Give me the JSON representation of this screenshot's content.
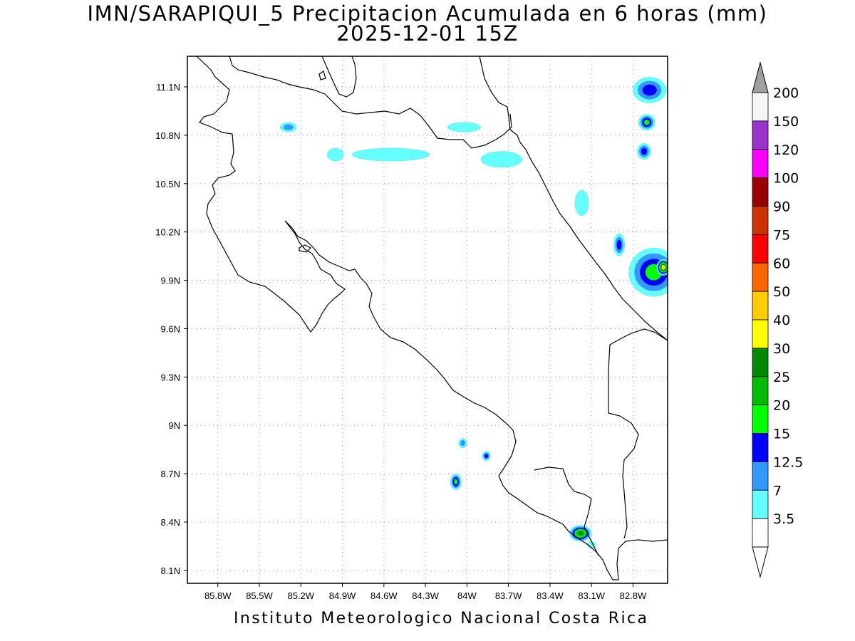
{
  "title": {
    "line1": "IMN/SARAPIQUI_5 Precipitacion Acumulada en 6 horas (mm)",
    "line2": "2025-12-01 15Z"
  },
  "footer": "Instituto Meteorologico Nacional Costa Rica",
  "map": {
    "lon_range": [
      -86.02,
      -82.55
    ],
    "lat_range": [
      8.02,
      11.29
    ],
    "lon_ticks": [
      {
        "value": -85.8,
        "label": "85.8W"
      },
      {
        "value": -85.5,
        "label": "85.5W"
      },
      {
        "value": -85.2,
        "label": "85.2W"
      },
      {
        "value": -84.9,
        "label": "84.9W"
      },
      {
        "value": -84.6,
        "label": "84.6W"
      },
      {
        "value": -84.3,
        "label": "84.3W"
      },
      {
        "value": -84.0,
        "label": "84W"
      },
      {
        "value": -83.7,
        "label": "83.7W"
      },
      {
        "value": -83.4,
        "label": "83.4W"
      },
      {
        "value": -83.1,
        "label": "83.1W"
      },
      {
        "value": -82.8,
        "label": "82.8W"
      }
    ],
    "lat_ticks": [
      {
        "value": 11.1,
        "label": "11.1N"
      },
      {
        "value": 10.8,
        "label": "10.8N"
      },
      {
        "value": 10.5,
        "label": "10.5N"
      },
      {
        "value": 10.2,
        "label": "10.2N"
      },
      {
        "value": 9.9,
        "label": "9.9N"
      },
      {
        "value": 9.6,
        "label": "9.6N"
      },
      {
        "value": 9.3,
        "label": "9.3N"
      },
      {
        "value": 9.0,
        "label": "9N"
      },
      {
        "value": 8.7,
        "label": "8.7N"
      },
      {
        "value": 8.4,
        "label": "8.4N"
      },
      {
        "value": 8.1,
        "label": "8.1N"
      }
    ],
    "grid": "dotted"
  },
  "colorbar": {
    "levels": [
      {
        "label": "200",
        "color": "#f5f5f5"
      },
      {
        "label": "150",
        "color": "#9933cc"
      },
      {
        "label": "120",
        "color": "#ff00ff"
      },
      {
        "label": "100",
        "color": "#990000"
      },
      {
        "label": "90",
        "color": "#cc3300"
      },
      {
        "label": "75",
        "color": "#ff0000"
      },
      {
        "label": "60",
        "color": "#ff6600"
      },
      {
        "label": "50",
        "color": "#ffcc00"
      },
      {
        "label": "40",
        "color": "#ffff00"
      },
      {
        "label": "30",
        "color": "#008800"
      },
      {
        "label": "25",
        "color": "#00bb00"
      },
      {
        "label": "20",
        "color": "#00ff00"
      },
      {
        "label": "15",
        "color": "#0000ff"
      },
      {
        "label": "12.5",
        "color": "#3399ff"
      },
      {
        "label": "7",
        "color": "#66ffff"
      },
      {
        "label": "3.5",
        "color": "#ffffff"
      }
    ],
    "top_arrow_color": "#a0a0a0",
    "bottom_arrow_color": "#ffffff"
  },
  "precipitation_cells": [
    {
      "lon": -85.29,
      "lat": 10.85,
      "rx": 0.06,
      "ry": 0.03,
      "level": "12.5"
    },
    {
      "lon": -84.95,
      "lat": 10.68,
      "rx": 0.06,
      "ry": 0.04,
      "level": "7"
    },
    {
      "lon": -84.55,
      "lat": 10.68,
      "rx": 0.28,
      "ry": 0.04,
      "level": "3.5"
    },
    {
      "lon": -84.02,
      "lat": 10.85,
      "rx": 0.12,
      "ry": 0.03,
      "level": "3.5"
    },
    {
      "lon": -83.75,
      "lat": 10.65,
      "rx": 0.15,
      "ry": 0.05,
      "level": "7"
    },
    {
      "lon": -83.17,
      "lat": 10.38,
      "rx": 0.05,
      "ry": 0.08,
      "level": "7"
    },
    {
      "lon": -82.68,
      "lat": 11.08,
      "rx": 0.12,
      "ry": 0.08,
      "level": "15"
    },
    {
      "lon": -82.7,
      "lat": 10.88,
      "rx": 0.06,
      "ry": 0.05,
      "level": "20"
    },
    {
      "lon": -82.72,
      "lat": 10.7,
      "rx": 0.05,
      "ry": 0.05,
      "level": "15"
    },
    {
      "lon": -82.65,
      "lat": 9.95,
      "rx": 0.18,
      "ry": 0.15,
      "level": "20"
    },
    {
      "lon": -82.58,
      "lat": 9.98,
      "rx": 0.05,
      "ry": 0.05,
      "level": "50"
    },
    {
      "lon": -82.9,
      "lat": 10.12,
      "rx": 0.04,
      "ry": 0.07,
      "level": "15"
    },
    {
      "lon": -84.08,
      "lat": 8.65,
      "rx": 0.04,
      "ry": 0.05,
      "level": "20"
    },
    {
      "lon": -83.86,
      "lat": 8.81,
      "rx": 0.03,
      "ry": 0.03,
      "level": "15"
    },
    {
      "lon": -84.03,
      "lat": 8.89,
      "rx": 0.03,
      "ry": 0.03,
      "level": "12.5"
    },
    {
      "lon": -83.18,
      "lat": 8.33,
      "rx": 0.08,
      "ry": 0.05,
      "level": "30"
    },
    {
      "lon": -83.1,
      "lat": 8.26,
      "rx": 0.03,
      "ry": 0.02,
      "level": "7"
    }
  ]
}
